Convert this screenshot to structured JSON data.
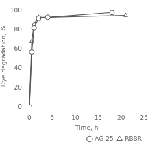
{
  "chart_data": {
    "type": "line",
    "xlabel": "Time, h",
    "ylabel": "Dye degradation, %",
    "series": [
      {
        "name": "AG 25",
        "x": [
          0,
          0.5,
          1,
          2,
          4,
          18
        ],
        "values": [
          0,
          57,
          82,
          92,
          93,
          98
        ],
        "color": "#555555",
        "marker": "circle"
      },
      {
        "name": "RBBR",
        "x": [
          0,
          0.5,
          1,
          2,
          4,
          21
        ],
        "values": [
          1,
          68,
          86,
          93,
          93,
          95
        ],
        "color": "#555555",
        "marker": "triangle"
      }
    ],
    "xlim": [
      0,
      25
    ],
    "ylim": [
      0,
      105
    ],
    "xticks": [
      0,
      5,
      10,
      15,
      20,
      25
    ],
    "yticks": [
      0,
      20,
      40,
      60,
      80,
      100
    ],
    "grid": false,
    "legend": "lower right"
  }
}
